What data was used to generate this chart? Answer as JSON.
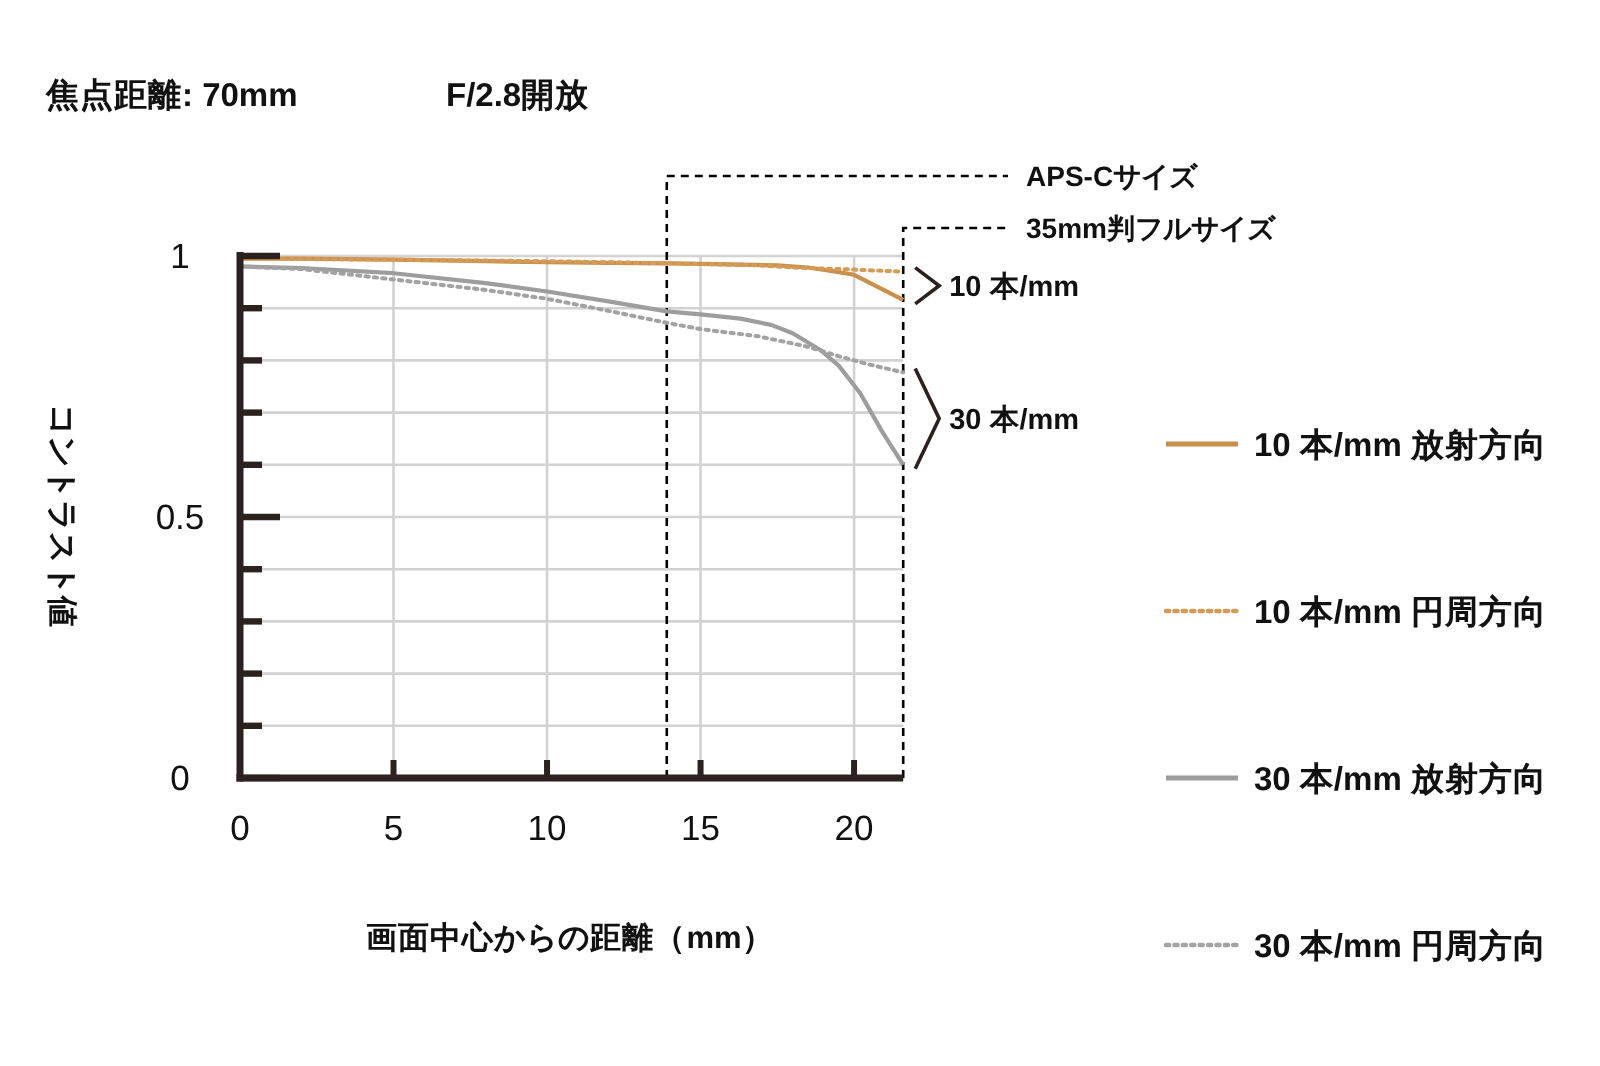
{
  "chart_data": {
    "type": "line",
    "title": "焦点距離: 70mm",
    "subtitle": "F/2.8開放",
    "xlabel": "画面中心からの距離（mm）",
    "ylabel": "コントラスト値",
    "xlim": [
      0,
      21.6
    ],
    "xticks": [
      0,
      5,
      10,
      15,
      20
    ],
    "ylim": [
      0,
      1
    ],
    "yticks": [
      0,
      {
        "value": 0.1,
        "label": null
      },
      {
        "value": 0.2,
        "label": null
      },
      {
        "value": 0.3,
        "label": null
      },
      {
        "value": 0.4,
        "label": null
      },
      0.5,
      {
        "value": 0.6,
        "label": null
      },
      {
        "value": 0.7,
        "label": null
      },
      {
        "value": 0.8,
        "label": null
      },
      {
        "value": 0.9,
        "label": null
      },
      1
    ],
    "grid": true,
    "legend": "right",
    "ref_lines": [
      {
        "axis": "x",
        "value": 13.9,
        "label": "APS-Cサイズ",
        "color": "#000000",
        "line_style": "dashed"
      },
      {
        "axis": "x",
        "value": 21.6,
        "label": "35mm判フルサイズ",
        "color": "#000000",
        "line_style": "dashed"
      }
    ],
    "annotations": [
      {
        "text": "10 本/mm",
        "x": 21.6,
        "y": 0.943
      },
      {
        "text": "30 本/mm",
        "x": 21.6,
        "y": 0.69
      }
    ],
    "series": [
      {
        "name": "10 本/mm 放射方向",
        "color": "#c8904c",
        "line_style": "solid",
        "x": [
          0,
          2,
          5,
          8,
          10,
          12,
          14,
          16,
          17.5,
          18.5,
          19.2,
          20,
          20.8,
          21.6
        ],
        "values": [
          0.995,
          0.995,
          0.993,
          0.99,
          0.988,
          0.987,
          0.986,
          0.984,
          0.982,
          0.978,
          0.972,
          0.964,
          0.94,
          0.916
        ]
      },
      {
        "name": "10 本/mm 円周方向",
        "color": "#d49a56",
        "line_style": "dotted",
        "x": [
          0,
          5,
          10,
          14,
          16.9,
          18,
          20,
          21.6
        ],
        "values": [
          0.995,
          0.993,
          0.99,
          0.986,
          0.982,
          0.978,
          0.974,
          0.97
        ]
      },
      {
        "name": "30 本/mm 放射方向",
        "color": "#9d9d9d",
        "line_style": "solid",
        "x": [
          0,
          2,
          5,
          8,
          10,
          12,
          13.9,
          15,
          16.3,
          17.3,
          18,
          18.9,
          19.5,
          20.2,
          20.9,
          21.6
        ],
        "values": [
          0.98,
          0.977,
          0.967,
          0.948,
          0.932,
          0.913,
          0.894,
          0.888,
          0.88,
          0.868,
          0.852,
          0.82,
          0.79,
          0.737,
          0.665,
          0.6
        ]
      },
      {
        "name": "30 本/mm 円周方向",
        "color": "#a2a2a2",
        "line_style": "dotted",
        "x": [
          0,
          2,
          5,
          8,
          10,
          12,
          13.9,
          15,
          16.9,
          18.5,
          19.5,
          20.5,
          21.6
        ],
        "values": [
          0.98,
          0.975,
          0.955,
          0.935,
          0.918,
          0.895,
          0.872,
          0.86,
          0.846,
          0.826,
          0.808,
          0.792,
          0.777
        ]
      }
    ]
  }
}
